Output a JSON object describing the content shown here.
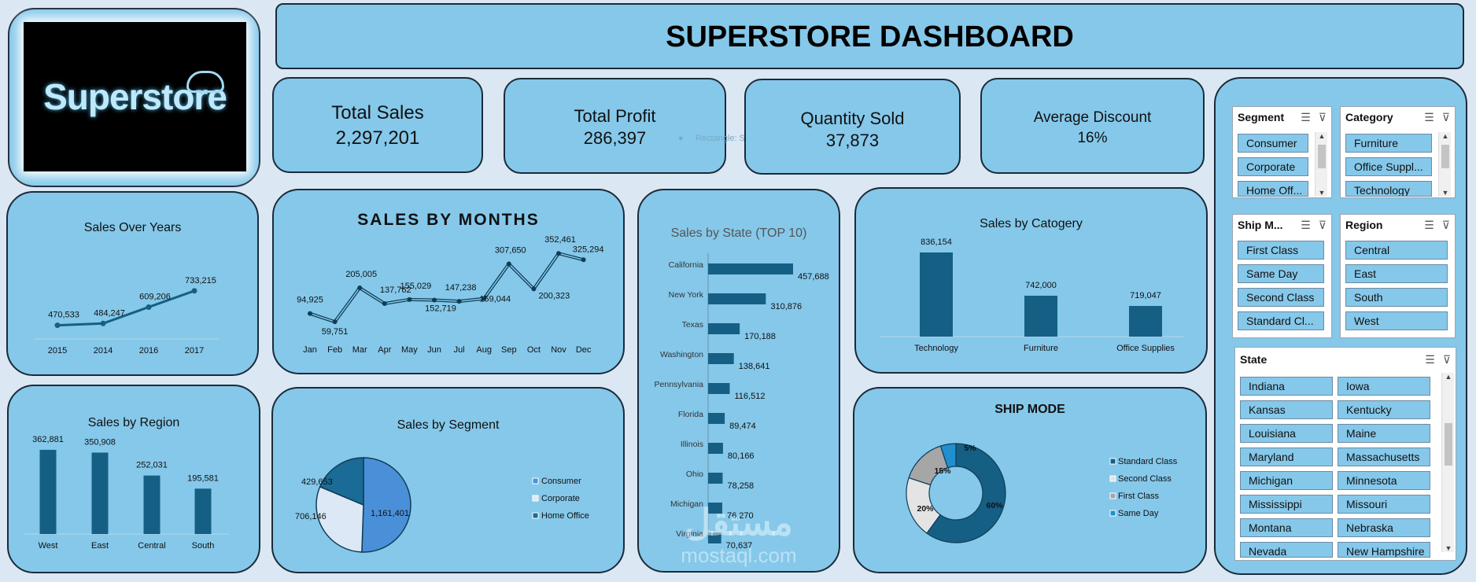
{
  "logo": {
    "text": "Superstore"
  },
  "header": {
    "title": "SUPERSTORE DASHBOARD"
  },
  "kpis": [
    {
      "label": "Total Sales",
      "value": "2,297,201"
    },
    {
      "label": "Total Profit",
      "value": "286,397"
    },
    {
      "label": "Quantity Sold",
      "value": "37,873"
    },
    {
      "label": "Average Discount",
      "value": "16%"
    }
  ],
  "ghost_shape_label": "Rectangle: Snip",
  "watermark": {
    "arabic": "مستقل",
    "latin": "mostaql.com"
  },
  "colors": {
    "panel": "#85c8ea",
    "dark_bar": "#155f84",
    "pie_blue": "#4a90d9",
    "pie_light": "#dde8f6",
    "pie_dark": "#1a6b95",
    "gray": "#a6a6a6",
    "accent_blue": "#1f8fcf"
  },
  "charts": {
    "sales_over_years": {
      "title": "Sales Over Years",
      "chart_data": {
        "type": "line",
        "categories": [
          "2015",
          "2014",
          "2016",
          "2017"
        ],
        "values": [
          470533,
          484247,
          609206,
          733215
        ],
        "labels": [
          "470,533",
          "484,247",
          "609,206",
          "733,215"
        ]
      }
    },
    "sales_by_months": {
      "title": "SALES BY MONTHS",
      "chart_data": {
        "type": "line",
        "categories": [
          "Jan",
          "Feb",
          "Mar",
          "Apr",
          "May",
          "Jun",
          "Jul",
          "Aug",
          "Sep",
          "Oct",
          "Nov",
          "Dec"
        ],
        "values": [
          94925,
          59751,
          205005,
          137762,
          155029,
          152719,
          147238,
          159044,
          307650,
          200323,
          352461,
          325294
        ],
        "labels": [
          "94,925",
          "59,751",
          "205,005",
          "137,762",
          "155,029",
          "152,719",
          "147,238",
          "159,044",
          "307,650",
          "200,323",
          "352,461",
          "325,294"
        ]
      }
    },
    "sales_by_state": {
      "title": "Sales by State (TOP 10)",
      "chart_data": {
        "type": "bar",
        "categories": [
          "California",
          "New York",
          "Texas",
          "Washington",
          "Pennsylvania",
          "Florida",
          "Illinois",
          "Ohio",
          "Michigan",
          "Virginia"
        ],
        "values": [
          457688,
          310876,
          170188,
          138641,
          116512,
          89474,
          80166,
          78258,
          76270,
          70637
        ],
        "labels": [
          "457,688",
          "310,876",
          "170,188",
          "138,641",
          "116,512",
          "89,474",
          "80,166",
          "78,258",
          "76,270",
          "70,637"
        ]
      }
    },
    "sales_by_category": {
      "title": "Sales by Catogery",
      "chart_data": {
        "type": "bar",
        "categories": [
          "Technology",
          "Furniture",
          "Office Supplies"
        ],
        "values": [
          836154,
          742000,
          719047
        ],
        "labels": [
          "836,154",
          "742,000",
          "719,047"
        ]
      }
    },
    "sales_by_region": {
      "title": "Sales by Region",
      "chart_data": {
        "type": "bar",
        "categories": [
          "West",
          "East",
          "Central",
          "South"
        ],
        "values": [
          362881,
          350908,
          252031,
          195581
        ],
        "labels": [
          "362,881",
          "350,908",
          "252,031",
          "195,581"
        ]
      }
    },
    "sales_by_segment": {
      "title": "Sales by Segment",
      "chart_data": {
        "type": "pie",
        "categories": [
          "Consumer",
          "Corporate",
          "Home Office"
        ],
        "values": [
          1161401,
          706146,
          429653
        ],
        "labels": [
          "1,161,401",
          "706,146",
          "429,653"
        ],
        "legend": "right"
      }
    },
    "ship_mode": {
      "title": "SHIP MODE",
      "chart_data": {
        "type": "pie",
        "categories": [
          "Standard Class",
          "Second Class",
          "First Class",
          "Same Day"
        ],
        "values": [
          60,
          20,
          15,
          5
        ],
        "labels": [
          "60%",
          "20%",
          "15%",
          "5%"
        ],
        "legend": "right"
      }
    }
  },
  "slicers": {
    "segment": {
      "title": "Segment",
      "items": [
        "Consumer",
        "Corporate",
        "Home Off..."
      ]
    },
    "category": {
      "title": "Category",
      "items": [
        "Furniture",
        "Office Suppl...",
        "Technology"
      ]
    },
    "ship_mode": {
      "title": "Ship M...",
      "items": [
        "First Class",
        "Same Day",
        "Second Class",
        "Standard Cl..."
      ]
    },
    "region": {
      "title": "Region",
      "items": [
        "Central",
        "East",
        "South",
        "West"
      ]
    },
    "state": {
      "title": "State",
      "items": [
        "Indiana",
        "Iowa",
        "Kansas",
        "Kentucky",
        "Louisiana",
        "Maine",
        "Maryland",
        "Massachusetts",
        "Michigan",
        "Minnesota",
        "Mississippi",
        "Missouri",
        "Montana",
        "Nebraska",
        "Nevada",
        "New Hampshire"
      ]
    }
  }
}
